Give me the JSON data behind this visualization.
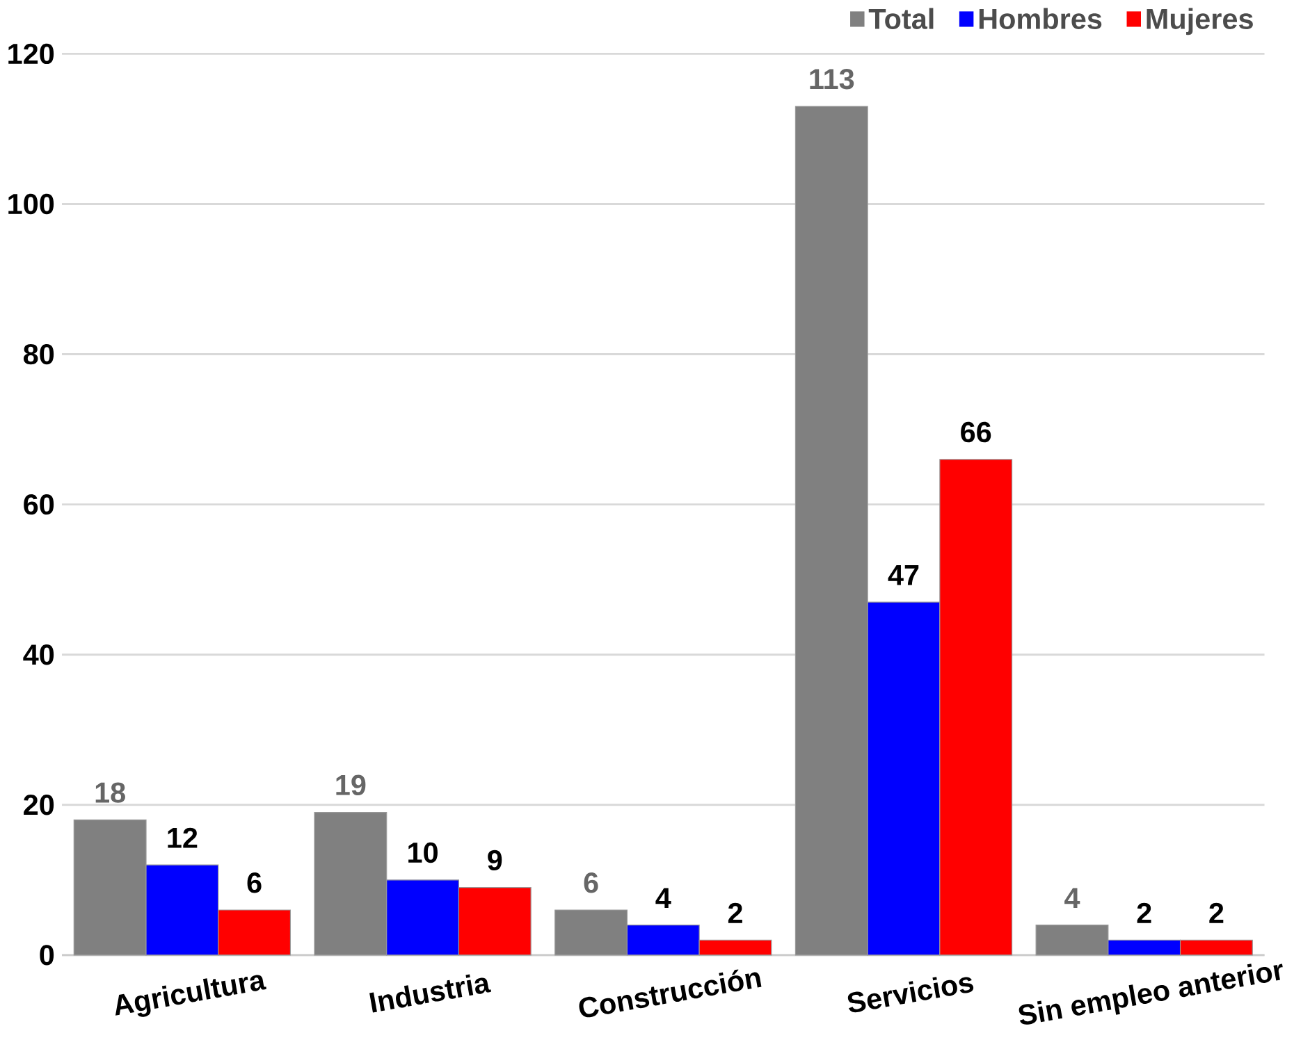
{
  "chart_data": {
    "type": "bar",
    "categories": [
      "Agricultura",
      "Industria",
      "Construcción",
      "Servicios",
      "Sin empleo anterior"
    ],
    "series": [
      {
        "name": "Total",
        "color": "#808080",
        "values": [
          18,
          19,
          6,
          113,
          4
        ]
      },
      {
        "name": "Hombres",
        "color": "#0000ff",
        "values": [
          12,
          10,
          4,
          47,
          2
        ]
      },
      {
        "name": "Mujeres",
        "color": "#ff0000",
        "values": [
          6,
          9,
          2,
          66,
          2
        ]
      }
    ],
    "ylim": [
      0,
      120
    ],
    "yticks": [
      0,
      20,
      40,
      60,
      80,
      100,
      120
    ],
    "grid": "y",
    "legend": "top right",
    "data_labels": true
  }
}
